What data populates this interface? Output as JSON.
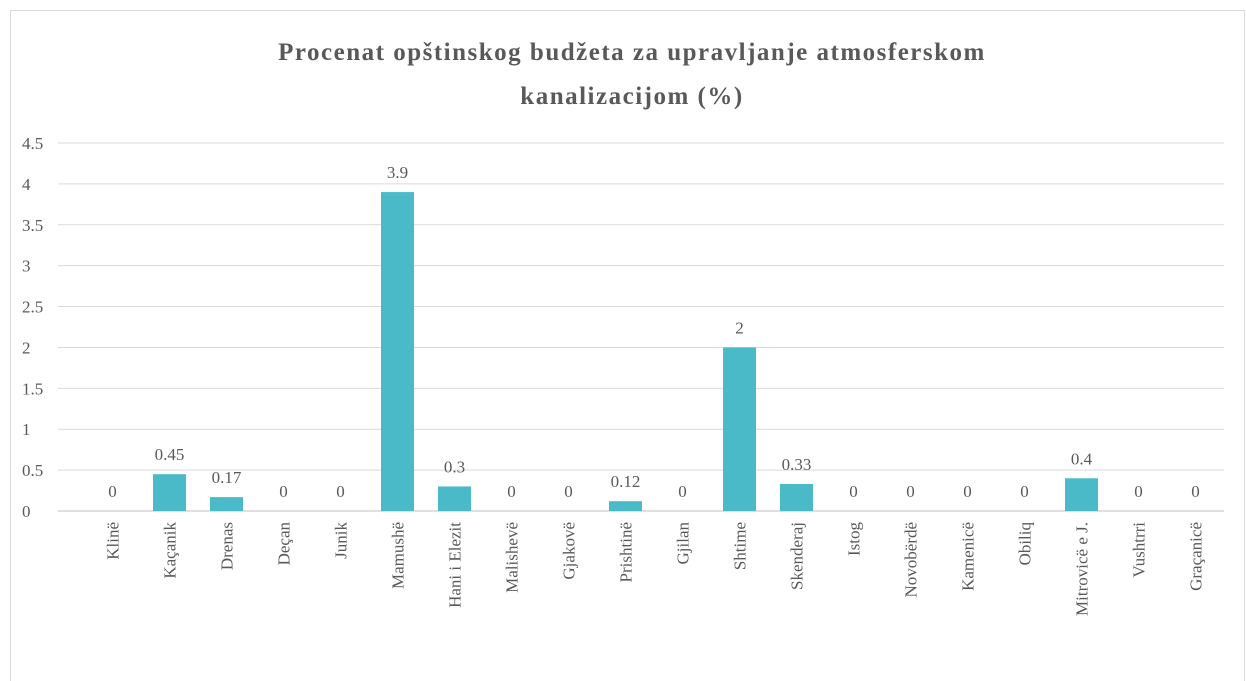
{
  "chart_data": {
    "type": "bar",
    "title": [
      "Procenat opštinskog budžeta za upravljanje atmosferskom",
      "kanalizacijom (%)"
    ],
    "categories": [
      "Klinë",
      "Kaçanik",
      "Drenas",
      "Deçan",
      "Junik",
      "Mamushë",
      "Hani i Elezit",
      "Malishevë",
      "Gjakovë",
      "Prishtinë",
      "Gjilan",
      "Shtime",
      "Skenderaj",
      "Istog",
      "Novobërdë",
      "Kamenicë",
      "Obiliq",
      "Mitrovicë  e J.",
      "Vushtrri",
      "Graçanicë"
    ],
    "values": [
      0,
      0.45,
      0.17,
      0,
      0,
      3.9,
      0.3,
      0,
      0,
      0.12,
      0,
      2,
      0.33,
      0,
      0,
      0,
      0,
      0.4,
      0,
      0
    ],
    "color": "#4bbac8",
    "ylim": [
      0,
      4.5
    ],
    "yticks": [
      0,
      0.5,
      1,
      1.5,
      2,
      2.5,
      3,
      3.5,
      4,
      4.5
    ],
    "grid": true
  }
}
